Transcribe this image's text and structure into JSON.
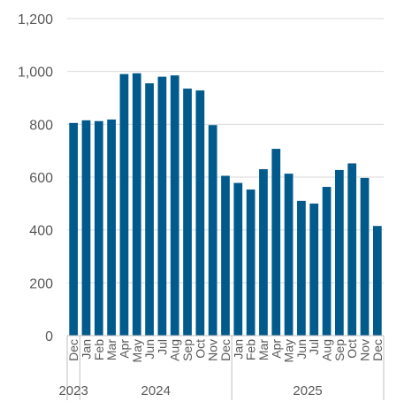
{
  "chart_data": {
    "type": "bar",
    "title": "",
    "xlabel": "",
    "ylabel": "",
    "ylim": [
      0,
      1200
    ],
    "yticks": [
      "0",
      "200",
      "400",
      "600",
      "800",
      "1,000",
      "1,200"
    ],
    "grid": "horizontal",
    "bar_color": "#005a8c",
    "categories": [
      "Dec",
      "Jan",
      "Feb",
      "Mar",
      "Apr",
      "May",
      "Jun",
      "Jul",
      "Aug",
      "Sep",
      "Oct",
      "Nov",
      "Dec",
      "Jan",
      "Feb",
      "Mar",
      "Apr",
      "May",
      "Jun",
      "Jul",
      "Aug",
      "Sep",
      "Oct",
      "Nov",
      "Dec"
    ],
    "values": [
      805,
      815,
      812,
      818,
      990,
      993,
      955,
      980,
      985,
      935,
      928,
      797,
      605,
      578,
      553,
      630,
      707,
      613,
      510,
      500,
      563,
      627,
      652,
      597,
      415
    ],
    "year_groups": [
      {
        "label": "2023",
        "count": 1
      },
      {
        "label": "2024",
        "count": 12
      },
      {
        "label": "2025",
        "count": 12
      }
    ]
  }
}
